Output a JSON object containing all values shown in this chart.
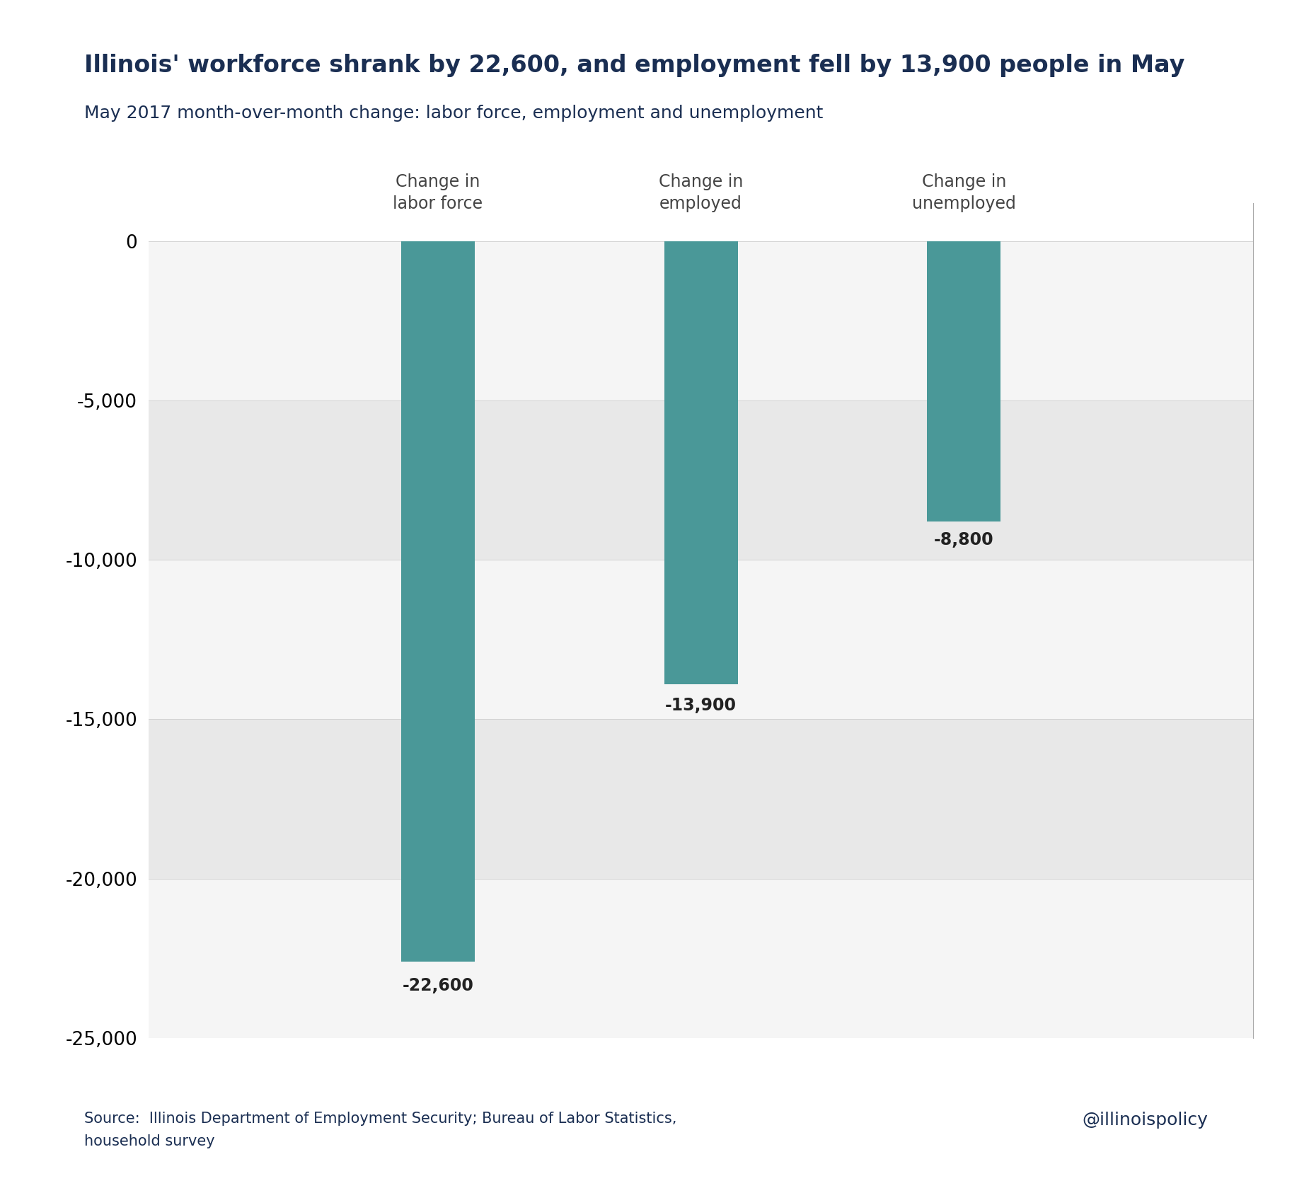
{
  "title": "Illinois' workforce shrank by 22,600, and employment fell by 13,900 people in May",
  "subtitle": "May 2017 month-over-month change: labor force, employment and unemployment",
  "categories": [
    "Change in\nlabor force",
    "Change in\nemployed",
    "Change in\nunemployed"
  ],
  "values": [
    -22600,
    -13900,
    -8800
  ],
  "bar_color": "#4a9898",
  "title_color": "#1a2e52",
  "subtitle_color": "#1a2e52",
  "source_text": "Source:  Illinois Department of Employment Security; Bureau of Labor Statistics,\nhousehold survey",
  "watermark": "@illinoispolicy",
  "ylim": [
    -25000,
    1200
  ],
  "yticks": [
    0,
    -5000,
    -10000,
    -15000,
    -20000,
    -25000
  ],
  "bar_width": 0.28,
  "background_color": "#ffffff",
  "stripe_light": "#f5f5f5",
  "stripe_dark": "#e8e8e8",
  "label_fontsize": 17,
  "title_fontsize": 24,
  "subtitle_fontsize": 18,
  "tick_fontsize": 19,
  "source_fontsize": 15,
  "watermark_fontsize": 18,
  "value_label_fontsize": 17
}
